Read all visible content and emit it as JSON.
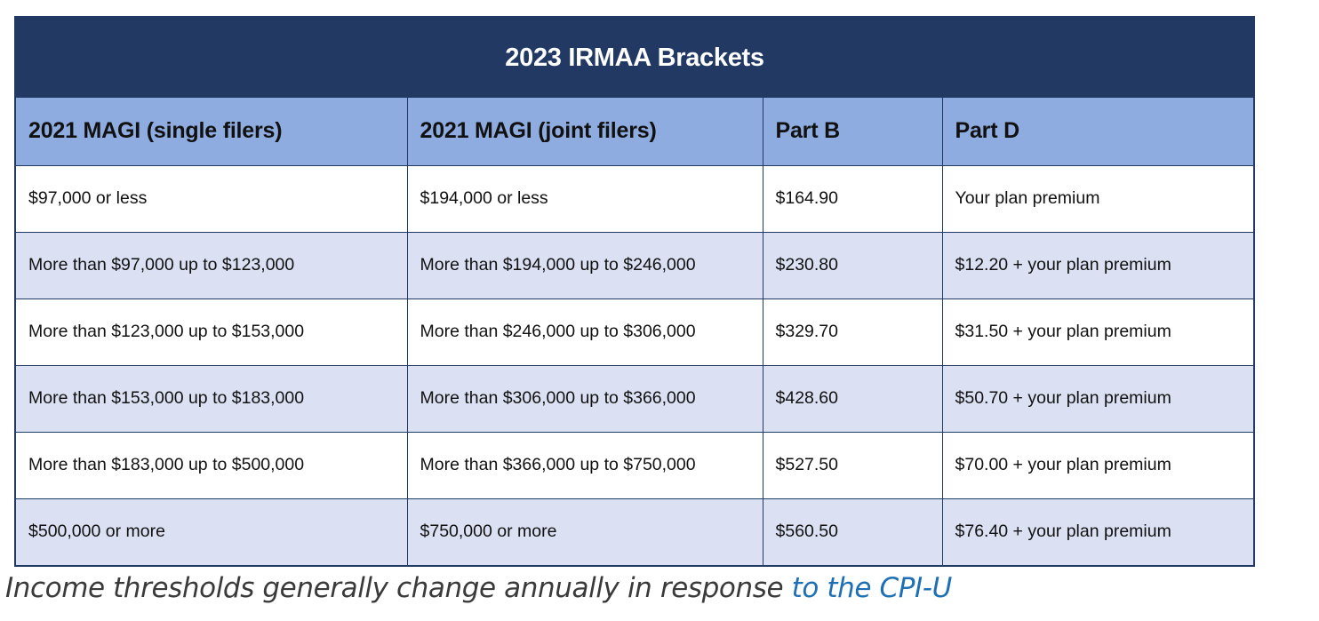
{
  "table": {
    "title": "2023 IRMAA Brackets",
    "headers": [
      "2021 MAGI (single filers)",
      "2021 MAGI (joint filers)",
      "Part B",
      "Part D"
    ],
    "rows": [
      [
        "$97,000 or less",
        "$194,000 or less",
        "$164.90",
        "Your plan premium"
      ],
      [
        "More than $97,000 up to $123,000",
        "More than $194,000 up to $246,000",
        "$230.80",
        "$12.20 + your plan premium"
      ],
      [
        "More than $123,000 up to $153,000",
        "More than $246,000 up to $306,000",
        "$329.70",
        "$31.50 + your plan premium"
      ],
      [
        "More than $153,000 up to $183,000",
        "More than $306,000 up to $366,000",
        "$428.60",
        "$50.70 + your plan premium"
      ],
      [
        "More than $183,000 up to $500,000",
        "More than $366,000 up to $750,000",
        "$527.50",
        "$70.00 + your plan premium"
      ],
      [
        "$500,000 or more",
        "$750,000 or more",
        "$560.50",
        "$76.40 + your plan premium"
      ]
    ],
    "colors": {
      "title_bg": "#223964",
      "header_bg": "#8eacdf",
      "row_alt_bg": "#dbe1f3"
    }
  },
  "caption": {
    "text": "Income thresholds generally change annually in response ",
    "link_text": "to the CPI-U"
  }
}
